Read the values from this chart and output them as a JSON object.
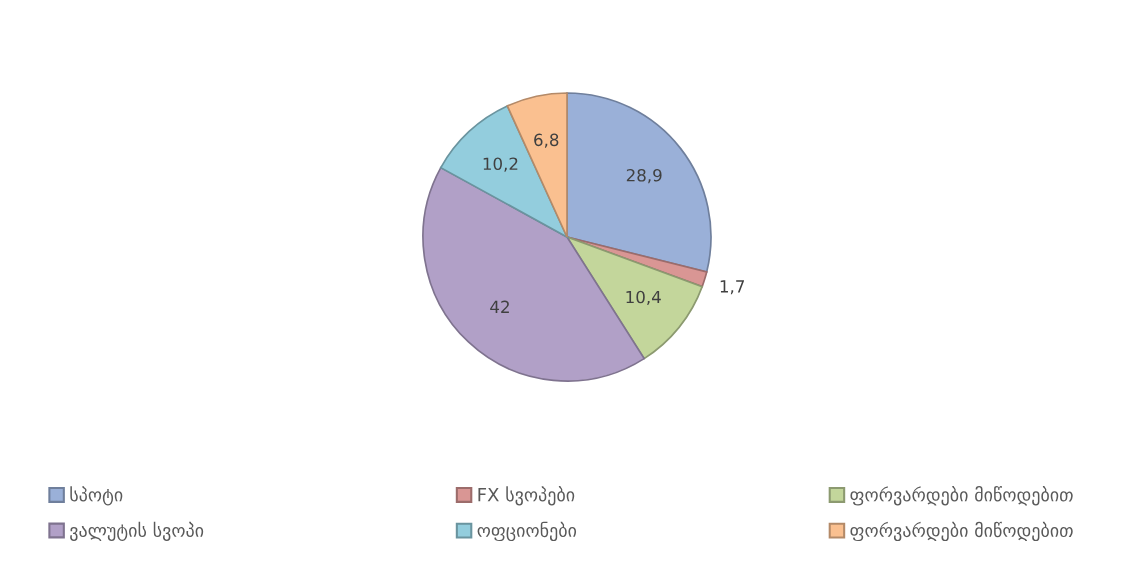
{
  "chart_data": {
    "type": "pie",
    "categories": [
      "სპოტი",
      "FX სვოპები",
      "ფორვარდები მიწოდებით",
      "ვალუტის სვოპი",
      "ოფციონები",
      "ფორვარდები მიწოდებით"
    ],
    "values": [
      28.9,
      1.7,
      10.4,
      42,
      10.2,
      6.8
    ],
    "value_labels": [
      "28,9",
      "1,7",
      "10,4",
      "42",
      "10,2",
      "6,8"
    ],
    "colors": [
      "#9ab0d8",
      "#d99694",
      "#c3d69b",
      "#b1a0c7",
      "#93cddd",
      "#fac090"
    ],
    "legend": "bottom"
  }
}
